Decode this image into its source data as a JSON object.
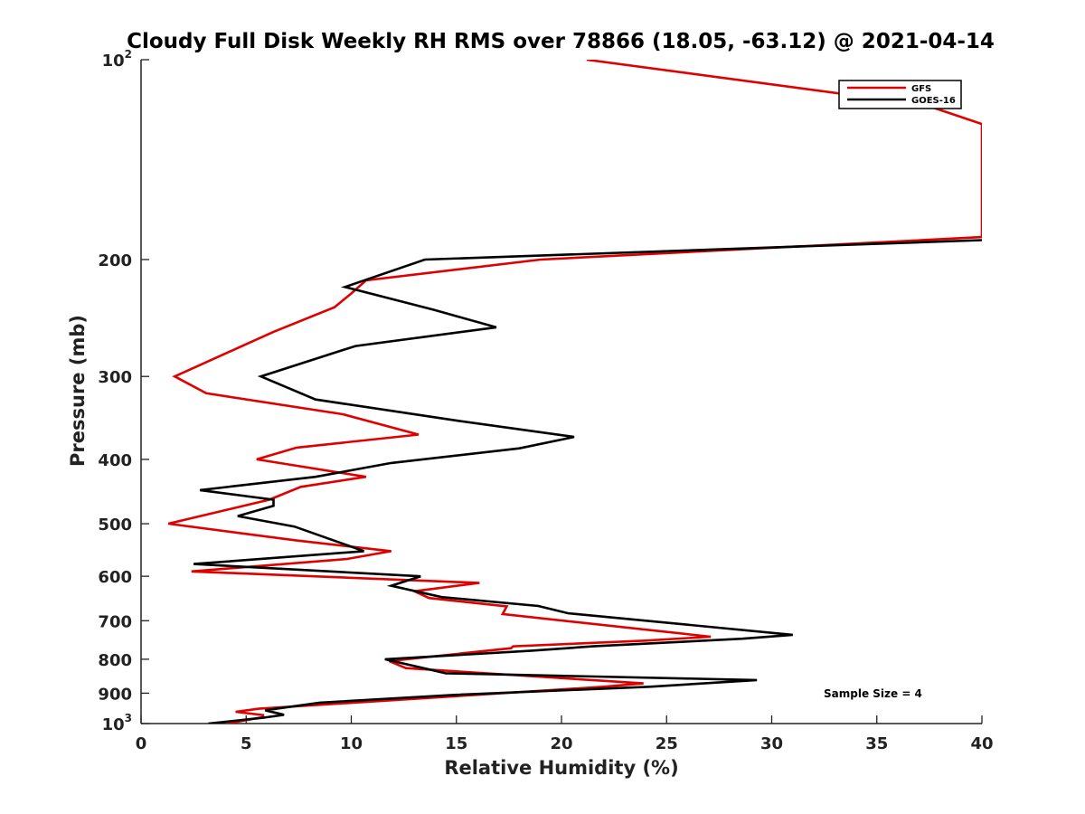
{
  "chart_data": {
    "type": "line",
    "title": "Cloudy Full Disk Weekly RH RMS over 78866 (18.05, -63.12) @ 2021-04-14",
    "xlabel": "Relative Humidity (%)",
    "ylabel": "Pressure (mb)",
    "xlim": [
      0,
      40
    ],
    "ylim": [
      100,
      1000
    ],
    "y_scale": "log",
    "y_reversed": true,
    "x_ticks": [
      "0",
      "5",
      "10",
      "15",
      "20",
      "25",
      "30",
      "35",
      "40"
    ],
    "x_tick_values": [
      0,
      5,
      10,
      15,
      20,
      25,
      30,
      35,
      40
    ],
    "y_ticks": [
      {
        "value": 100,
        "base": "10",
        "exp": "2",
        "label": ""
      },
      {
        "value": 200,
        "label": "200"
      },
      {
        "value": 300,
        "label": "300"
      },
      {
        "value": 400,
        "label": "400"
      },
      {
        "value": 500,
        "label": "500"
      },
      {
        "value": 600,
        "label": "600"
      },
      {
        "value": 700,
        "label": "700"
      },
      {
        "value": 800,
        "label": "800"
      },
      {
        "value": 900,
        "label": "900"
      },
      {
        "value": 1000,
        "base": "10",
        "exp": "3",
        "label": ""
      }
    ],
    "legend_position": "top-right",
    "annotation": "Sample Size = 4",
    "series": [
      {
        "name": "GFS",
        "color": "#e00000",
        "points": [
          [
            21.2,
            100
          ],
          [
            37.3,
            117
          ],
          [
            40,
            125
          ],
          [
            40,
            185
          ],
          [
            19,
            200
          ],
          [
            10.7,
            215
          ],
          [
            10,
            225
          ],
          [
            9.2,
            236
          ],
          [
            6.3,
            257
          ],
          [
            1.6,
            300
          ],
          [
            3.1,
            318
          ],
          [
            9.6,
            342
          ],
          [
            13.2,
            367
          ],
          [
            7.4,
            384
          ],
          [
            5.5,
            400
          ],
          [
            10.7,
            425
          ],
          [
            7.6,
            440
          ],
          [
            6.1,
            460
          ],
          [
            1.3,
            500
          ],
          [
            7.4,
            530
          ],
          [
            11.9,
            550
          ],
          [
            9.8,
            565
          ],
          [
            2.4,
            590
          ],
          [
            16.1,
            614
          ],
          [
            13,
            632
          ],
          [
            13.7,
            647
          ],
          [
            17.4,
            666
          ],
          [
            17.2,
            684
          ],
          [
            27.1,
            740
          ],
          [
            24,
            750
          ],
          [
            17.7,
            765
          ],
          [
            17.6,
            770
          ],
          [
            11.8,
            805
          ],
          [
            12.6,
            825
          ],
          [
            23.9,
            870
          ],
          [
            22,
            880
          ],
          [
            5.6,
            950
          ],
          [
            4.5,
            960
          ],
          [
            5.8,
            971
          ],
          [
            5.8,
            978
          ],
          [
            4.1,
            1000
          ]
        ]
      },
      {
        "name": "GOES-16",
        "color": "#000000",
        "points": [
          [
            40,
            187
          ],
          [
            13.5,
            200
          ],
          [
            9.7,
            220
          ],
          [
            13.9,
            238
          ],
          [
            16.9,
            253
          ],
          [
            10.2,
            270
          ],
          [
            5.7,
            300
          ],
          [
            8.3,
            325
          ],
          [
            15.1,
            350
          ],
          [
            20.6,
            370
          ],
          [
            18,
            385
          ],
          [
            11.9,
            405
          ],
          [
            8.3,
            425
          ],
          [
            2.8,
            445
          ],
          [
            6.3,
            460
          ],
          [
            6.3,
            470
          ],
          [
            4.6,
            487
          ],
          [
            7.3,
            505
          ],
          [
            10.6,
            550
          ],
          [
            2.5,
            575
          ],
          [
            13.3,
            600
          ],
          [
            11.9,
            620
          ],
          [
            14.3,
            645
          ],
          [
            18.9,
            665
          ],
          [
            20.3,
            682
          ],
          [
            31,
            735
          ],
          [
            28.6,
            745
          ],
          [
            21.5,
            765
          ],
          [
            18.5,
            777
          ],
          [
            11.6,
            800
          ],
          [
            14.5,
            840
          ],
          [
            29.3,
            860
          ],
          [
            24.2,
            880
          ],
          [
            15,
            905
          ],
          [
            8.5,
            930
          ],
          [
            5.9,
            955
          ],
          [
            6.8,
            970
          ],
          [
            5.8,
            980
          ],
          [
            3.2,
            1000
          ]
        ]
      }
    ]
  }
}
